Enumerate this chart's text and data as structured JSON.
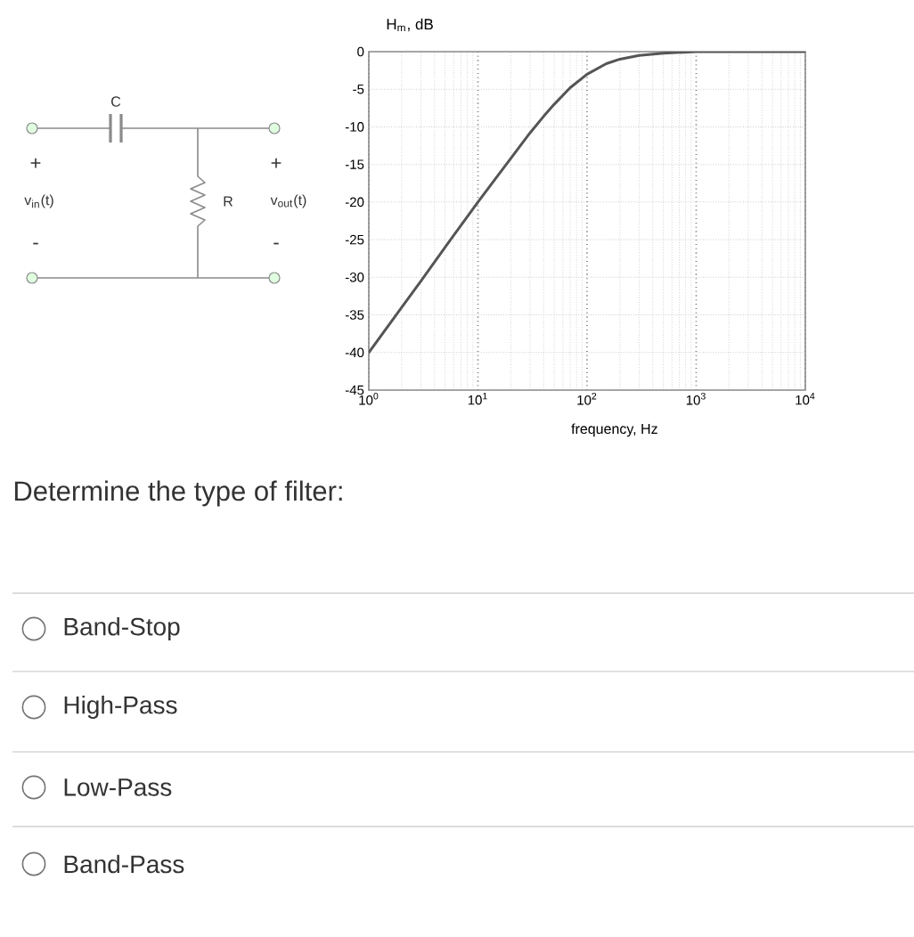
{
  "chart_data": {
    "type": "line",
    "ylabel": "H$_{m}$, dB",
    "xlabel": "frequency, Hz",
    "annotations": [
      "C",
      "+",
      "v$_{in}$(t)",
      "-",
      "R",
      "+",
      "v$_{out}$(t)",
      "-",
      "Determine the type of filter:",
      "Band-Stop",
      "High-Pass",
      "Low-Pass",
      "Band-Pass"
    ],
    "x": [
      1,
      2,
      3,
      5,
      10,
      15,
      20,
      30,
      40,
      50,
      70,
      100,
      150,
      200,
      300,
      500,
      1000,
      3000,
      10000
    ],
    "values": [
      -40,
      -34,
      -30.5,
      -26,
      -20,
      -16.6,
      -14.2,
      -10.8,
      -8.6,
      -7,
      -4.8,
      -3,
      -1.6,
      -1,
      -0.5,
      -0.2,
      0,
      0,
      0
    ],
    "color": "#555555",
    "line_style": "solid",
    "log": "x",
    "xlim": [
      1,
      10000
    ],
    "ylim": [
      -45,
      0
    ],
    "xticks": [
      {
        "value": 1,
        "label": "10$^{0}$"
      },
      {
        "value": 10,
        "label": "10$^{1}$"
      },
      {
        "value": 100,
        "label": "10$^{2}$"
      },
      {
        "value": 1000,
        "label": "10$^{3}$"
      },
      {
        "value": 10000,
        "label": "10$^{4}$"
      }
    ],
    "yticks": [
      -45,
      -40,
      -35,
      -30,
      -25,
      -20,
      -15,
      -10,
      -5,
      0
    ],
    "grid": true
  }
}
